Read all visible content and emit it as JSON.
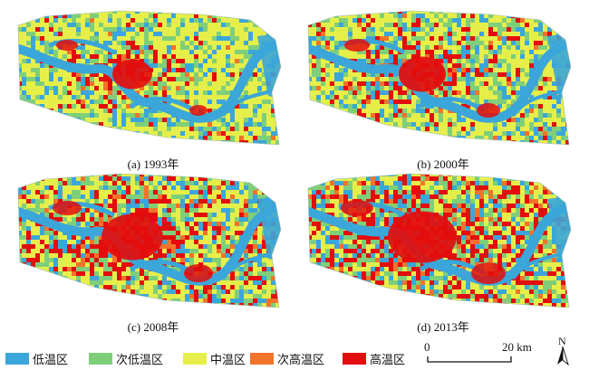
{
  "panels": [
    {
      "caption": "(a) 1993年"
    },
    {
      "caption": "(b) 2000年"
    },
    {
      "caption": "(c) 2008年"
    },
    {
      "caption": "(d) 2013年"
    }
  ],
  "legend": [
    {
      "label": "低温区",
      "color": "#3ba6d9"
    },
    {
      "label": "次低温区",
      "color": "#7fcf7a"
    },
    {
      "label": "中温区",
      "color": "#e6ef4a"
    },
    {
      "label": "次高温区",
      "color": "#f2732a"
    },
    {
      "label": "高温区",
      "color": "#e30d0d"
    }
  ],
  "scale": {
    "start": "0",
    "end": "20 km"
  },
  "north": {
    "label": "N",
    "icon": "north-arrow-icon"
  },
  "colors": {
    "low": "#3ba6d9",
    "sublow": "#7fcf7a",
    "mid": "#e6ef4a",
    "subhigh": "#f2732a",
    "high": "#e30d0d"
  }
}
